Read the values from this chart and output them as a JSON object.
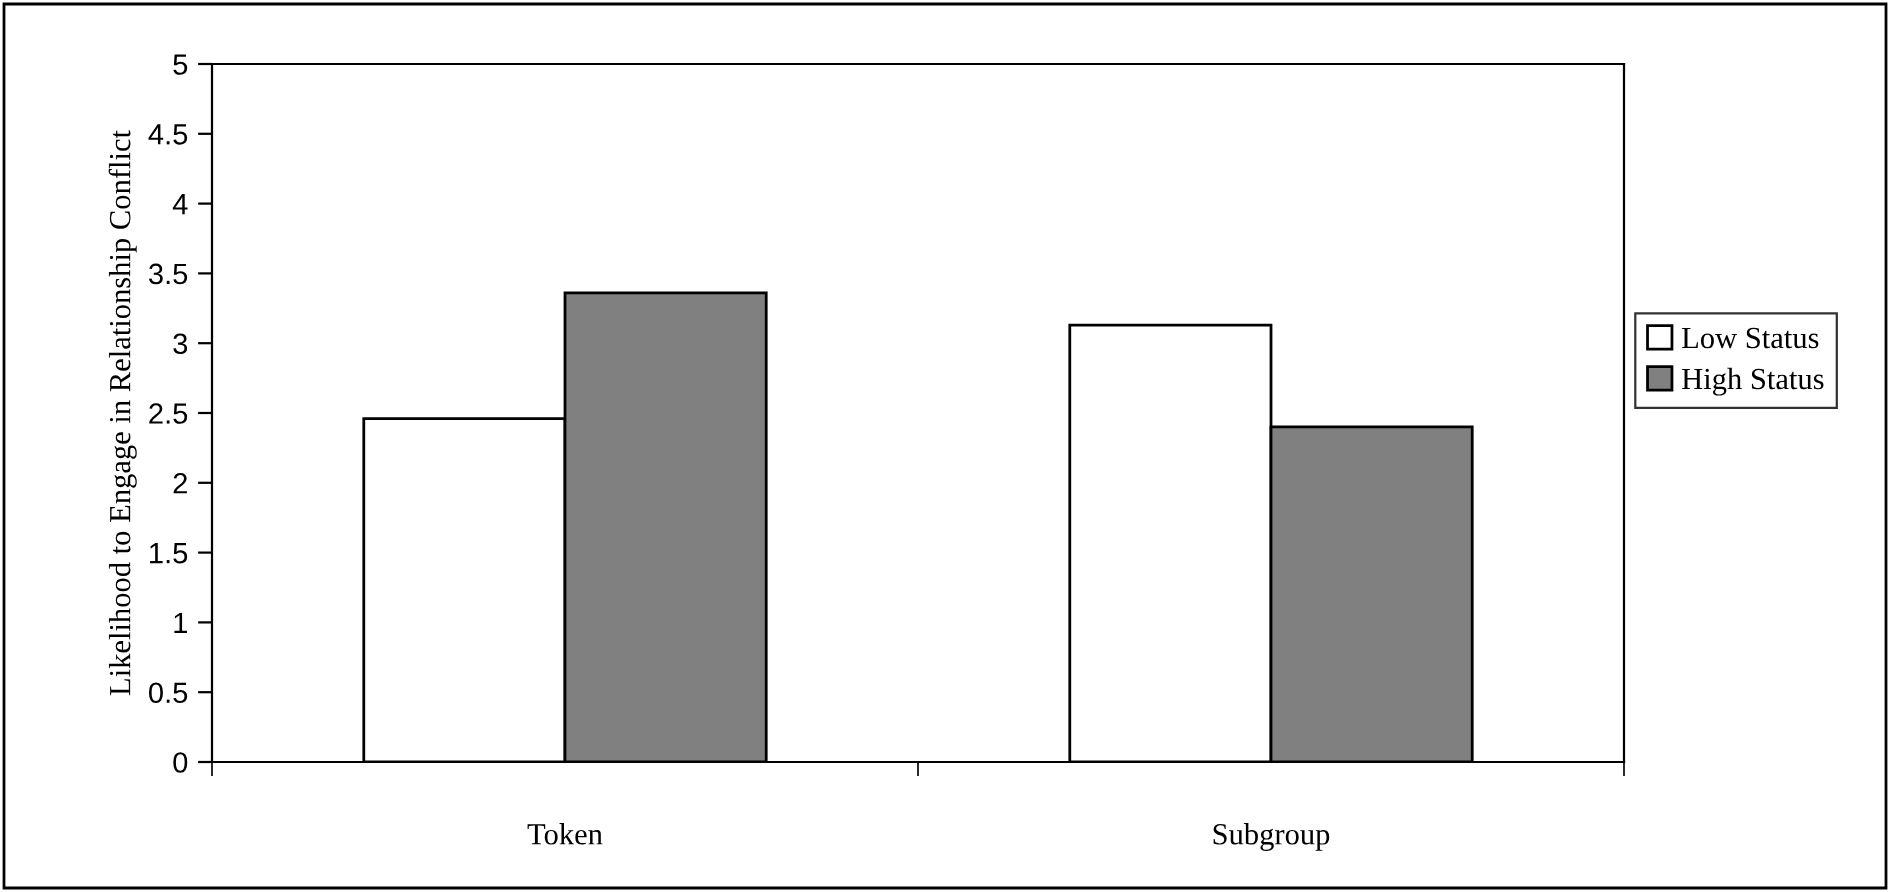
{
  "chart_data": {
    "type": "bar",
    "ylabel": "Likelihood to Engage in Relationship Conflict",
    "categories": [
      "Token",
      "Subgroup"
    ],
    "series": [
      {
        "name": "Low Status",
        "color": "#ffffff",
        "values": [
          2.46,
          3.13
        ]
      },
      {
        "name": "High Status",
        "color": "#808080",
        "values": [
          3.36,
          2.4
        ]
      }
    ],
    "ylim": [
      0,
      5
    ],
    "yticks": [
      0,
      0.5,
      1,
      1.5,
      2,
      2.5,
      3,
      3.5,
      4,
      4.5,
      5
    ],
    "grid": false,
    "legend": "right"
  }
}
